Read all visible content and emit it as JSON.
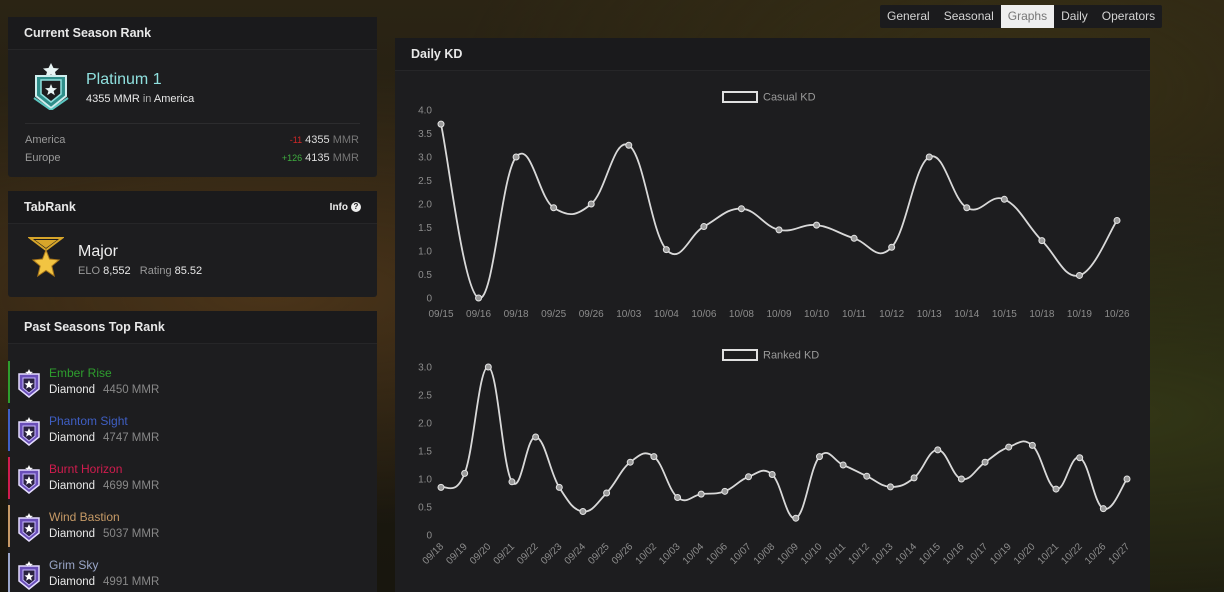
{
  "nav": {
    "tabs": [
      "General",
      "Seasonal",
      "Graphs",
      "Daily",
      "Operators"
    ],
    "active": "Graphs"
  },
  "current_season": {
    "title": "Current Season Rank",
    "rank": "Platinum 1",
    "mmr": "4355 MMR",
    "in_label": "in",
    "region": "America",
    "regions": [
      {
        "name": "America",
        "delta": "-11",
        "mmr": "4355",
        "unit": "MMR",
        "sign": "neg"
      },
      {
        "name": "Europe",
        "delta": "+126",
        "mmr": "4135",
        "unit": "MMR",
        "sign": "pos"
      }
    ]
  },
  "tabrank": {
    "title": "TabRank",
    "info_label": "Info",
    "rank": "Major",
    "elo_label": "ELO",
    "elo": "8,552",
    "rating_label": "Rating",
    "rating": "85.52"
  },
  "past_seasons": {
    "title": "Past Seasons Top Rank",
    "items": [
      {
        "name": "Ember Rise",
        "rank": "Diamond",
        "mmr": "4450 MMR",
        "color": "#2e9e2e"
      },
      {
        "name": "Phantom Sight",
        "rank": "Diamond",
        "mmr": "4747 MMR",
        "color": "#3f5fc4"
      },
      {
        "name": "Burnt Horizon",
        "rank": "Diamond",
        "mmr": "4699 MMR",
        "color": "#d01c4e"
      },
      {
        "name": "Wind Bastion",
        "rank": "Diamond",
        "mmr": "5037 MMR",
        "color": "#c69a66"
      },
      {
        "name": "Grim Sky",
        "rank": "Diamond",
        "mmr": "4991 MMR",
        "color": "#9aa6c8"
      }
    ]
  },
  "daily_kd": {
    "title": "Daily KD"
  },
  "chart_data": [
    {
      "type": "line",
      "series": [
        {
          "name": "Casual KD"
        }
      ],
      "x": [
        "09/15",
        "09/16",
        "09/18",
        "09/25",
        "09/26",
        "10/03",
        "10/04",
        "10/06",
        "10/08",
        "10/09",
        "10/10",
        "10/11",
        "10/12",
        "10/13",
        "10/14",
        "10/15",
        "10/18",
        "10/19",
        "10/26"
      ],
      "y": [
        3.7,
        0.0,
        3.0,
        1.92,
        2.0,
        3.25,
        1.03,
        1.52,
        1.9,
        1.45,
        1.55,
        1.27,
        1.08,
        3.0,
        1.92,
        2.1,
        1.22,
        0.48,
        1.65
      ],
      "ylim": [
        0,
        4.0
      ],
      "yticks": [
        "4.0",
        "3.5",
        "3.0",
        "2.5",
        "2.0",
        "1.5",
        "1.0",
        "0.5",
        "0"
      ],
      "grid": false,
      "legend": "top-center"
    },
    {
      "type": "line",
      "series": [
        {
          "name": "Ranked KD"
        }
      ],
      "x": [
        "09/18",
        "09/19",
        "09/20",
        "09/21",
        "09/22",
        "09/23",
        "09/24",
        "09/25",
        "09/26",
        "10/02",
        "10/03",
        "10/04",
        "10/06",
        "10/07",
        "10/08",
        "10/09",
        "10/10",
        "10/11",
        "10/12",
        "10/13",
        "10/14",
        "10/15",
        "10/16",
        "10/17",
        "10/19",
        "10/20",
        "10/21",
        "10/22",
        "10/26",
        "10/27"
      ],
      "y": [
        0.85,
        1.1,
        3.0,
        0.95,
        1.75,
        0.85,
        0.42,
        0.75,
        1.3,
        1.4,
        0.67,
        0.73,
        0.78,
        1.04,
        1.08,
        0.3,
        1.4,
        1.25,
        1.05,
        0.86,
        1.02,
        1.52,
        1.0,
        1.3,
        1.57,
        1.6,
        0.82,
        1.38,
        0.47,
        1.0
      ],
      "ylim": [
        0,
        3.0
      ],
      "yticks": [
        "3.0",
        "2.5",
        "2.0",
        "1.5",
        "1.0",
        "0.5",
        "0"
      ],
      "grid": false,
      "legend": "top-center"
    }
  ]
}
